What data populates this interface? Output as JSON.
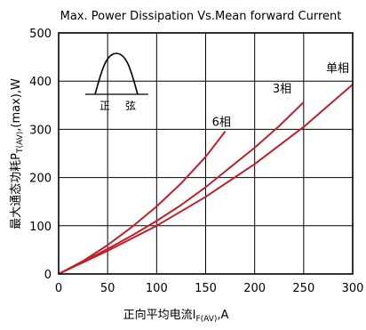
{
  "chart_data": {
    "type": "line",
    "title": "Max. Power Dissipation Vs.Mean forward Current",
    "xlabel": {
      "prefix": "正向平均电流",
      "symbol": "I",
      "subscript": "F(AV)",
      "suffix": ",A"
    },
    "ylabel": {
      "prefix": "最大通态功耗",
      "symbol": "P",
      "subscript": "T(AV)",
      "suffix": ",(max),W"
    },
    "xlim": [
      0,
      300
    ],
    "ylim": [
      0,
      500
    ],
    "xticks": [
      0,
      50,
      100,
      150,
      200,
      250,
      300
    ],
    "yticks": [
      0,
      100,
      200,
      300,
      400,
      500
    ],
    "grid": true,
    "line_color": "#c0202a",
    "series": [
      {
        "name": "6相",
        "x": [
          0,
          25,
          50,
          75,
          100,
          125,
          150,
          170
        ],
        "y": [
          0,
          27,
          60,
          98,
          140,
          188,
          243,
          296
        ]
      },
      {
        "name": "3相",
        "x": [
          0,
          25,
          50,
          75,
          100,
          125,
          150,
          175,
          200,
          225,
          250
        ],
        "y": [
          0,
          25,
          52,
          80,
          110,
          143,
          180,
          221,
          262,
          307,
          356
        ]
      },
      {
        "name": "单相",
        "x": [
          0,
          50,
          100,
          150,
          200,
          250,
          300
        ],
        "y": [
          0,
          48,
          100,
          160,
          228,
          305,
          393
        ]
      }
    ],
    "inset": {
      "label_left": "正",
      "label_right": "弦"
    }
  }
}
